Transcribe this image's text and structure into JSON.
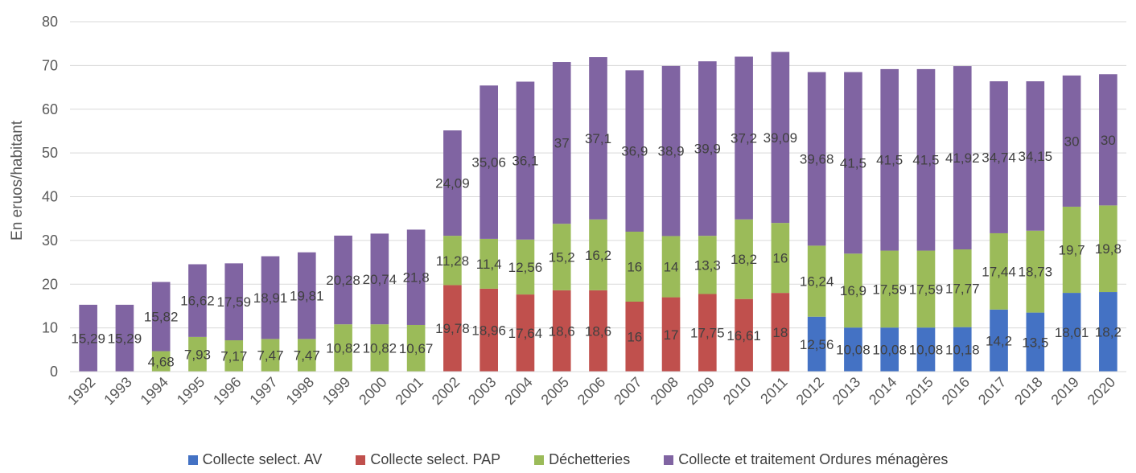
{
  "chart_data": {
    "type": "bar",
    "stacked": true,
    "ylabel": "En eruos/habitant",
    "xlabel": "",
    "ylim": [
      0,
      80
    ],
    "yticks": [
      0,
      10,
      20,
      30,
      40,
      50,
      60,
      70,
      80
    ],
    "grid": true,
    "legend_position": "bottom",
    "categories": [
      "1992",
      "1993",
      "1994",
      "1995",
      "1996",
      "1997",
      "1998",
      "1999",
      "2000",
      "2001",
      "2002",
      "2003",
      "2004",
      "2005",
      "2006",
      "2007",
      "2008",
      "2009",
      "2010",
      "2011",
      "2012",
      "2013",
      "2014",
      "2015",
      "2016",
      "2017",
      "2018",
      "2019",
      "2020"
    ],
    "series": [
      {
        "name": "Collecte select. AV",
        "color": "#4472C4",
        "values": [
          null,
          null,
          null,
          null,
          null,
          null,
          null,
          null,
          null,
          null,
          null,
          null,
          null,
          null,
          null,
          null,
          null,
          null,
          null,
          null,
          12.56,
          10.08,
          10.08,
          10.08,
          10.18,
          14.2,
          13.5,
          18.01,
          18.2
        ],
        "labels": [
          "",
          "",
          "",
          "",
          "",
          "",
          "",
          "",
          "",
          "",
          "",
          "",
          "",
          "",
          "",
          "",
          "",
          "",
          "",
          "",
          "12,56",
          "10,08",
          "10,08",
          "10,08",
          "10,18",
          "14,2",
          "13,5",
          "18,01",
          "18,2"
        ]
      },
      {
        "name": "Collecte select. PAP",
        "color": "#C0504D",
        "values": [
          null,
          null,
          null,
          null,
          null,
          null,
          null,
          null,
          null,
          null,
          19.78,
          18.96,
          17.64,
          18.6,
          18.6,
          16,
          17,
          17.75,
          16.61,
          18,
          null,
          null,
          null,
          null,
          null,
          null,
          null,
          null,
          null
        ],
        "labels": [
          "",
          "",
          "",
          "",
          "",
          "",
          "",
          "",
          "",
          "",
          "19,78",
          "18,96",
          "17,64",
          "18,6",
          "18,6",
          "16",
          "17",
          "17,75",
          "16,61",
          "18",
          "",
          "",
          "",
          "",
          "",
          "",
          "",
          "",
          ""
        ]
      },
      {
        "name": "Déchetteries",
        "color": "#9BBB59",
        "values": [
          null,
          null,
          4.68,
          7.93,
          7.17,
          7.47,
          7.47,
          10.82,
          10.82,
          10.67,
          11.28,
          11.4,
          12.56,
          15.2,
          16.2,
          16,
          14,
          13.3,
          18.2,
          16,
          16.24,
          16.9,
          17.59,
          17.59,
          17.77,
          17.44,
          18.73,
          19.7,
          19.8
        ],
        "labels": [
          "",
          "",
          "4,68",
          "7,93",
          "7,17",
          "7,47",
          "7,47",
          "10,82",
          "10,82",
          "10,67",
          "11,28",
          "11,4",
          "12,56",
          "15,2",
          "16,2",
          "16",
          "14",
          "13,3",
          "18,2",
          "16",
          "16,24",
          "16,9",
          "17,59",
          "17,59",
          "17,77",
          "17,44",
          "18,73",
          "19,7",
          "19,8"
        ]
      },
      {
        "name": "Collecte et traitement Ordures ménagères",
        "color": "#8064A2",
        "values": [
          15.29,
          15.29,
          15.82,
          16.62,
          17.59,
          18.91,
          19.81,
          20.28,
          20.74,
          21.8,
          24.09,
          35.06,
          36.1,
          37,
          37.1,
          36.9,
          38.9,
          39.9,
          37.2,
          39.09,
          39.68,
          41.5,
          41.5,
          41.5,
          41.92,
          34.74,
          34.15,
          30,
          30
        ],
        "labels": [
          "15,29",
          "15,29",
          "15,82",
          "16,62",
          "17,59",
          "18,91",
          "19,81",
          "20,28",
          "20,74",
          "21,8",
          "24,09",
          "35,06",
          "36,1",
          "37",
          "37,1",
          "36,9",
          "38,9",
          "39,9",
          "37,2",
          "39,09",
          "39,68",
          "41,5",
          "41,5",
          "41,5",
          "41,92",
          "34,74",
          "34,15",
          "30",
          "30"
        ]
      }
    ]
  }
}
